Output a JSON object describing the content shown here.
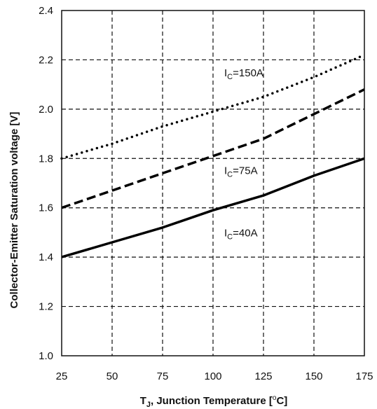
{
  "chart_data": {
    "type": "line",
    "xlabel": {
      "prefix": "T",
      "sub": "J",
      "rest": ", Junction Temperature [",
      "sup": "o",
      "unit": "C]"
    },
    "ylabel": "Collector-Emitter Saturation voltage [V]",
    "xlim": [
      25,
      175
    ],
    "ylim": [
      1.0,
      2.4
    ],
    "x_ticks": [
      "25",
      "50",
      "75",
      "100",
      "125",
      "150",
      "175"
    ],
    "y_ticks": [
      "1.0",
      "1.2",
      "1.4",
      "1.6",
      "1.8",
      "2.0",
      "2.2",
      "2.4"
    ],
    "grid": true,
    "series": [
      {
        "name": "IC=150A",
        "label_main": "I",
        "label_sub": "C",
        "label_rest": "=150A",
        "style": "dotted",
        "x": [
          25,
          50,
          75,
          100,
          125,
          150,
          175
        ],
        "y": [
          1.8,
          1.86,
          1.93,
          1.99,
          2.05,
          2.13,
          2.22
        ]
      },
      {
        "name": "IC=75A",
        "label_main": "I",
        "label_sub": "C",
        "label_rest": "=75A",
        "style": "dashed",
        "x": [
          25,
          50,
          75,
          100,
          125,
          150,
          175
        ],
        "y": [
          1.6,
          1.67,
          1.74,
          1.81,
          1.88,
          1.98,
          2.08
        ]
      },
      {
        "name": "IC=40A",
        "label_main": "I",
        "label_sub": "C",
        "label_rest": "=40A",
        "style": "solid",
        "x": [
          25,
          50,
          75,
          100,
          125,
          150,
          175
        ],
        "y": [
          1.4,
          1.46,
          1.52,
          1.59,
          1.65,
          1.73,
          1.8
        ]
      }
    ]
  }
}
